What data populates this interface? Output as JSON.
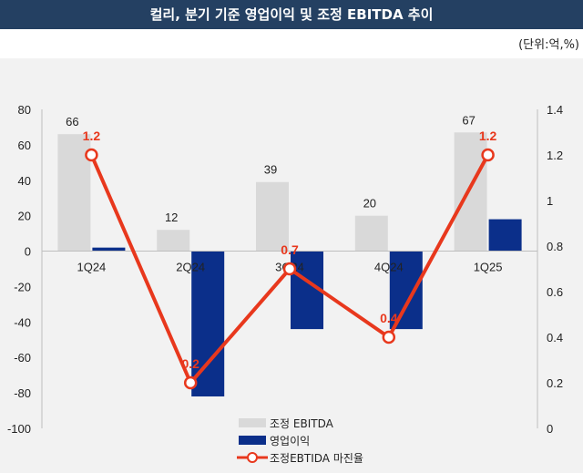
{
  "title": "컬리, 분기 기준 영업이익 및 조정 EBITDA 추이",
  "unit_note": "(단위:억,%)",
  "chart_data": {
    "type": "bar",
    "categories": [
      "1Q24",
      "2Q24",
      "3Q24",
      "4Q24",
      "1Q25"
    ],
    "series": [
      {
        "name": "조정 EBITDA",
        "kind": "bar",
        "axis": "left",
        "color": "#d9d9d9",
        "values": [
          66,
          12,
          39,
          20,
          67
        ]
      },
      {
        "name": "영업이익",
        "kind": "bar",
        "axis": "left",
        "color": "#0b2f8a",
        "values": [
          2,
          -82,
          -44,
          -44,
          18
        ]
      },
      {
        "name": "조정EBTIDA 마진율",
        "kind": "line",
        "axis": "right",
        "color": "#e8381d",
        "values": [
          1.2,
          0.2,
          0.7,
          0.4,
          1.2
        ]
      }
    ],
    "ebitda_labels": [
      "66",
      "12",
      "39",
      "20",
      "67"
    ],
    "margin_labels": [
      "1.2",
      "0.2",
      "0.7",
      "0.4",
      "1.2"
    ],
    "left_axis": {
      "min": -100,
      "max": 80,
      "ticks": [
        "80",
        "60",
        "40",
        "20",
        "0",
        "-20",
        "-40",
        "-60",
        "-80",
        "-100"
      ]
    },
    "right_axis": {
      "min": 0,
      "max": 1.4,
      "ticks": [
        "1.4",
        "1.2",
        "1",
        "0.8",
        "0.6",
        "0.4",
        "0.2",
        "0"
      ]
    },
    "grid": false,
    "legend_position": "bottom-center"
  }
}
